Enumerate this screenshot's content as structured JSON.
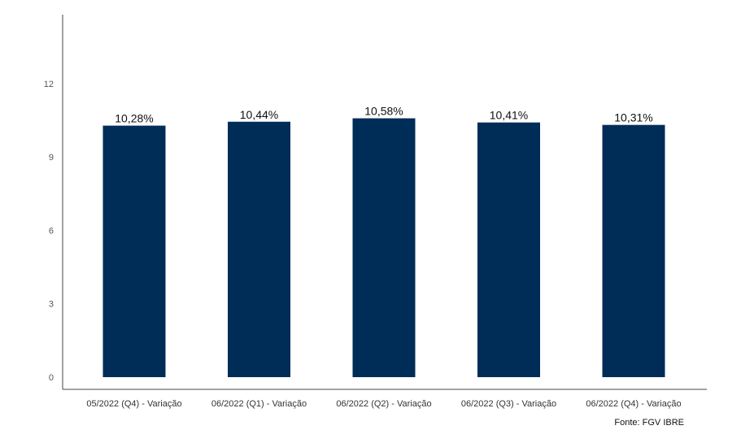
{
  "chart_data": {
    "type": "bar",
    "categories": [
      "05/2022 (Q4) - Variação",
      "06/2022 (Q1) - Variação",
      "06/2022 (Q2) - Variação",
      "06/2022 (Q3) - Variação",
      "06/2022 (Q4) - Variação"
    ],
    "values": [
      10.28,
      10.44,
      10.58,
      10.41,
      10.31
    ],
    "data_labels": [
      "10,28%",
      "10,44%",
      "10,58%",
      "10,41%",
      "10,31%"
    ],
    "yticks": [
      0,
      3,
      6,
      9,
      12
    ],
    "ylim": [
      0,
      14.5
    ],
    "grid": false,
    "bar_color": "#002D57",
    "source": "Fonte: FGV IBRE"
  }
}
